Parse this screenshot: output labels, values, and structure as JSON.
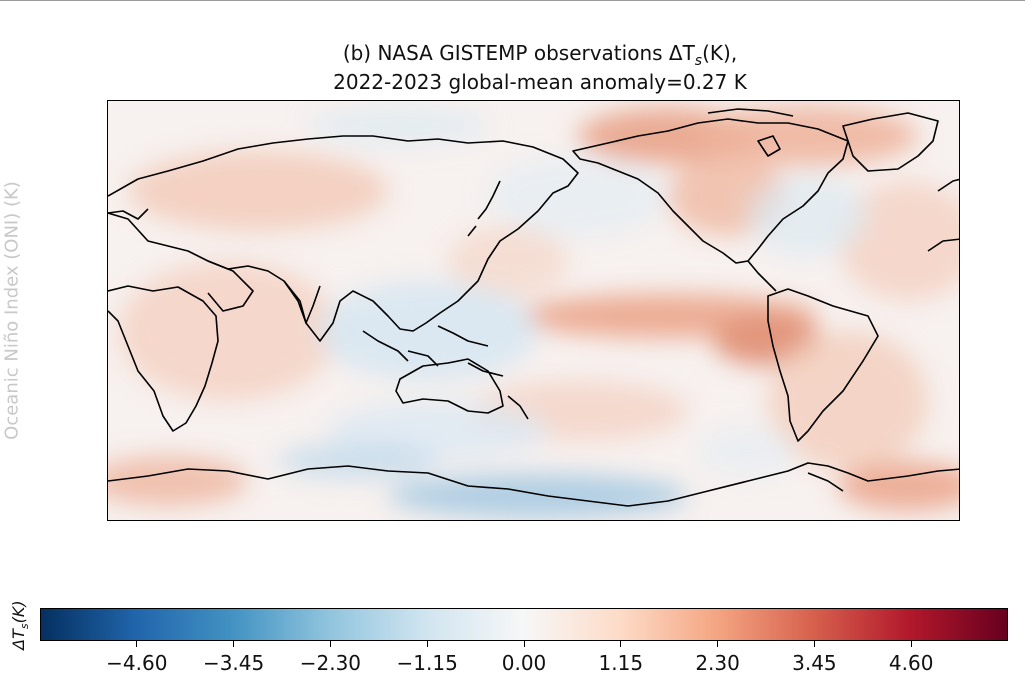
{
  "figure": {
    "title_line1": "(b) NASA GISTEMP observations ΔT",
    "title_sub": "s",
    "title_unit": "(K),",
    "title_line2": "2022-2023 global-mean anomaly=0.27 K",
    "side_label_partial": "Oceanic Niño Index (ONI) (K)"
  },
  "colorbar": {
    "label_main": "ΔT",
    "label_sub": "s",
    "label_unit": "(K)",
    "ticks": [
      "−4.60",
      "−3.45",
      "−2.30",
      "−1.15",
      "0.00",
      "1.15",
      "2.30",
      "3.45",
      "4.60"
    ],
    "tick_values": [
      -4.6,
      -3.45,
      -2.3,
      -1.15,
      0.0,
      1.15,
      2.3,
      3.45,
      4.6
    ],
    "vmin": -5.75,
    "vmax": 5.75,
    "colormap": "RdBu_r",
    "colors": [
      "#053061",
      "#2166ac",
      "#4393c3",
      "#92c5de",
      "#d1e5f0",
      "#f7f7f7",
      "#fddbc7",
      "#f4a582",
      "#d6604d",
      "#b2182b",
      "#67001f"
    ]
  },
  "map": {
    "projection": "PlateCarree centered on 180°",
    "anomaly_colors": {
      "warm_light": "#f6d7c9",
      "warm": "#efb9a3",
      "warm_strong": "#e08f74",
      "cool_light": "#dce9f2",
      "cool": "#a8cbe2",
      "neutral": "#f7f3f2"
    }
  }
}
